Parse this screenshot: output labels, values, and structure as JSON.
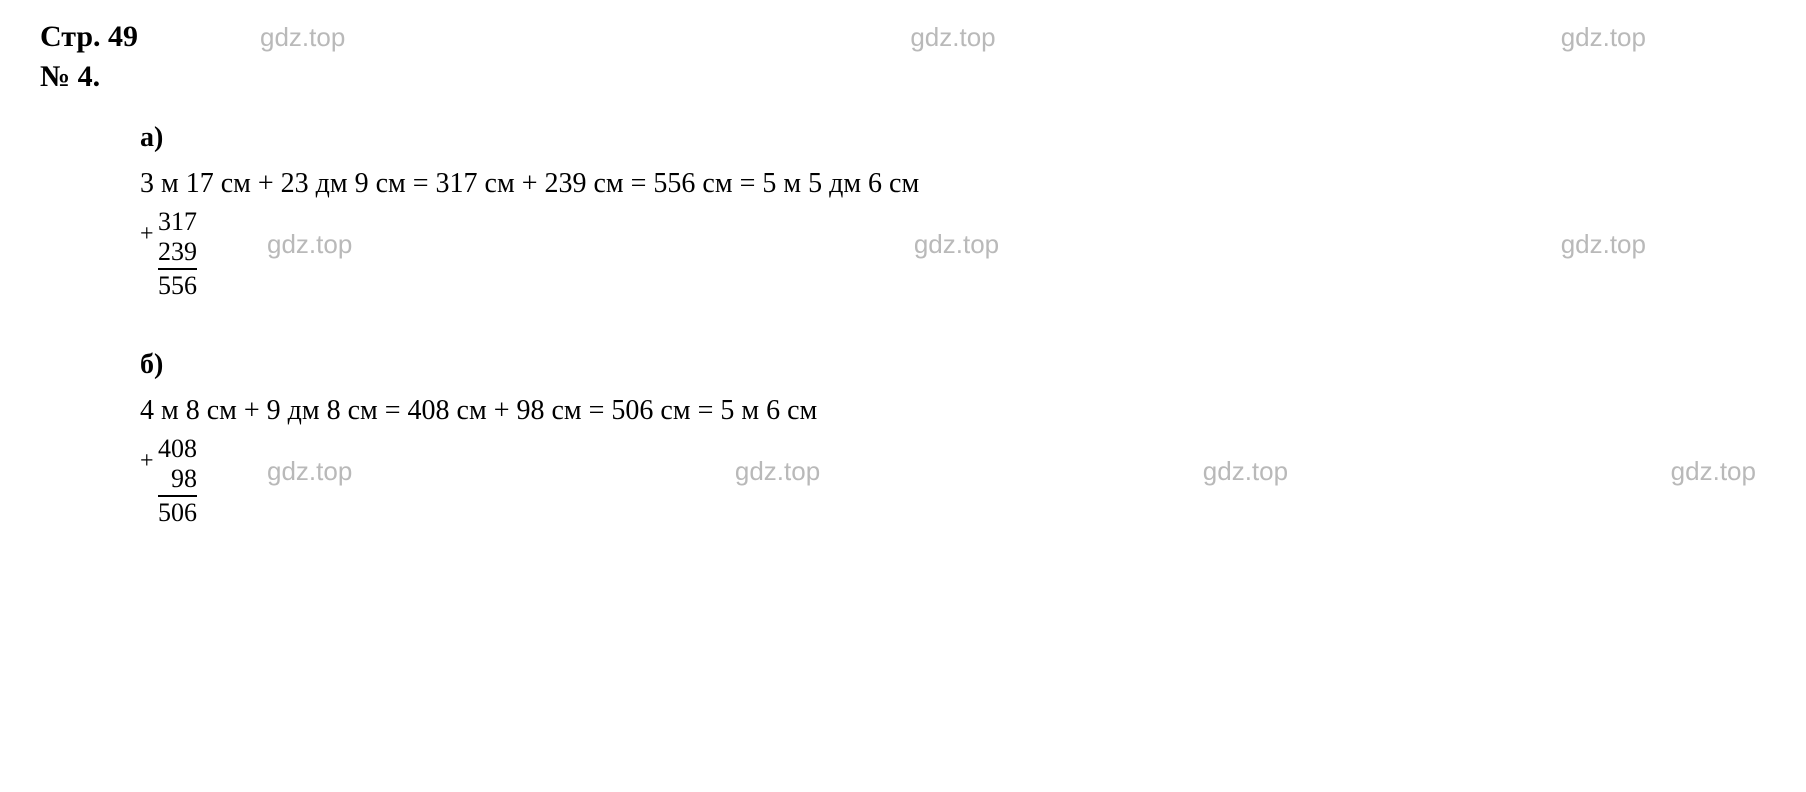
{
  "header": {
    "page_label": "Стр. 49",
    "problem_label": "№ 4.",
    "watermark_text": "gdz.top",
    "watermark_color": "#b9b9b9"
  },
  "style": {
    "font_family": "Times New Roman",
    "body_fontsize_pt": 28,
    "header_fontsize_pt": 30,
    "calc_fontsize_pt": 26,
    "text_color": "#000000",
    "background_color": "#ffffff"
  },
  "section_a": {
    "label": "а)",
    "equation": "3 м 17 см + 23 дм 9 см = 317 см + 239 см = 556 см = 5 м 5 дм 6 см",
    "column_addition": {
      "operator": "+",
      "addend_top": "317",
      "addend_bottom": "239",
      "sum": "556"
    }
  },
  "section_b": {
    "label": "б)",
    "equation": "4 м 8 см + 9 дм 8 см = 408 см + 98 см = 506 см = 5 м 6 см",
    "column_addition": {
      "operator": "+",
      "addend_top": "408",
      "addend_bottom": "98",
      "sum": "506"
    }
  }
}
